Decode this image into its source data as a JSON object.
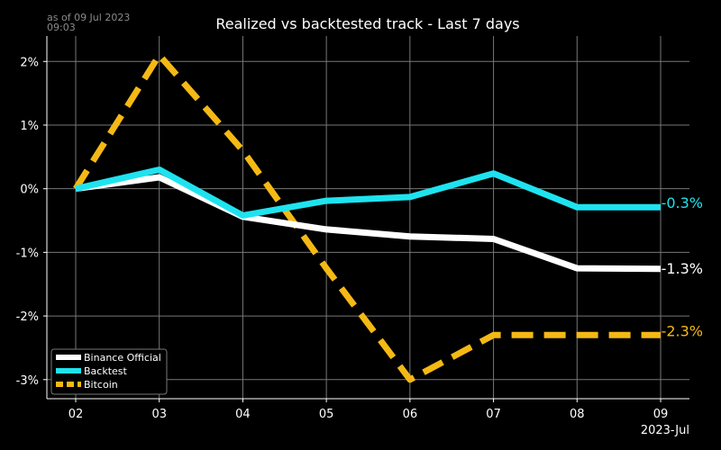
{
  "header": {
    "as_of_line1": "as of 09 Jul 2023",
    "as_of_line2": "09:03"
  },
  "chart_data": {
    "type": "line",
    "title": "Realized vs backtested track - Last 7 days",
    "x_tick_labels": [
      "02",
      "03",
      "04",
      "05",
      "06",
      "07",
      "08",
      "09"
    ],
    "x_axis_caption": "2023-Jul",
    "y_tick_labels": [
      "2%",
      "1%",
      "0%",
      "-1%",
      "-2%",
      "-3%"
    ],
    "y_ticks": [
      2,
      1,
      0,
      -1,
      -2,
      -3
    ],
    "ylim": [
      -3.3,
      2.4
    ],
    "grid": true,
    "legend_position": "bottom-left",
    "series": [
      {
        "name": "Binance Official",
        "color": "#ffffff",
        "style": "solid",
        "values": [
          0.0,
          0.18,
          -0.44,
          -0.64,
          -0.75,
          -0.79,
          -1.25,
          -1.26
        ],
        "end_label": "-1.3%"
      },
      {
        "name": "Backtest",
        "color": "#1ee3ef",
        "style": "solid",
        "values": [
          0.0,
          0.3,
          -0.42,
          -0.19,
          -0.13,
          0.24,
          -0.29,
          -0.29
        ],
        "end_label": "-0.3%"
      },
      {
        "name": "Bitcoin",
        "color": "#f5b915",
        "style": "dashed",
        "values": [
          0.0,
          2.1,
          0.6,
          -1.25,
          -3.0,
          -2.3,
          -2.3,
          -2.3
        ],
        "end_label": "-2.3%"
      }
    ]
  }
}
